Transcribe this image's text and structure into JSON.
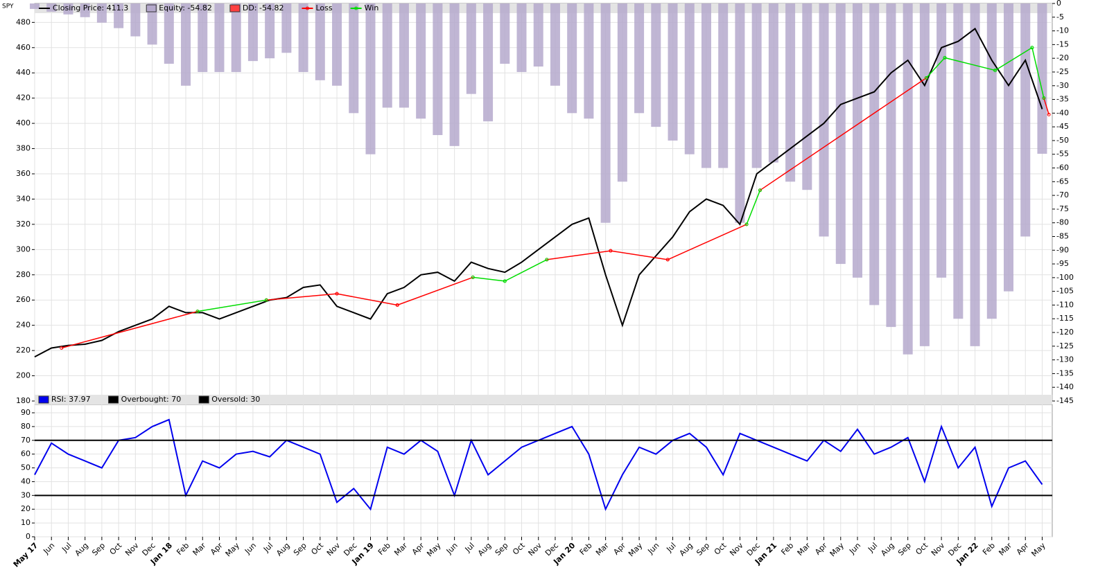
{
  "chart_data": [
    {
      "type": "line",
      "title": "SPY",
      "xlim": [
        0,
        60.6
      ],
      "ylim": [
        180,
        495
      ],
      "yticks": [
        180,
        200,
        220,
        240,
        260,
        280,
        300,
        320,
        340,
        360,
        380,
        400,
        420,
        440,
        460,
        480
      ],
      "y2lim": [
        -145,
        0
      ],
      "y2ticks": [
        0,
        -5,
        -10,
        -15,
        -20,
        -25,
        -30,
        -35,
        -40,
        -45,
        -50,
        -55,
        -60,
        -65,
        -70,
        -75,
        -80,
        -85,
        -90,
        -95,
        -100,
        -105,
        -110,
        -115,
        -120,
        -125,
        -130,
        -135,
        -140,
        -145
      ],
      "grid": true,
      "series": [
        {
          "name": "Closing Price: 411.3",
          "color": "#000000",
          "kind": "line",
          "x": [
            0,
            1,
            2,
            3,
            4,
            5,
            6,
            7,
            8,
            9,
            10,
            11,
            12,
            13,
            14,
            15,
            16,
            17,
            18,
            19,
            20,
            21,
            22,
            23,
            24,
            25,
            26,
            27,
            28,
            29,
            30,
            31,
            32,
            33,
            34,
            35,
            36,
            37,
            38,
            39,
            40,
            41,
            42,
            43,
            44,
            45,
            46,
            47,
            48,
            49,
            50,
            51,
            52,
            53,
            54,
            55,
            56,
            57,
            58,
            59,
            60
          ],
          "values": [
            215,
            222,
            224,
            225,
            228,
            235,
            240,
            245,
            255,
            250,
            250,
            245,
            250,
            255,
            260,
            262,
            270,
            272,
            255,
            250,
            245,
            265,
            270,
            280,
            282,
            275,
            290,
            285,
            282,
            290,
            300,
            310,
            320,
            325,
            280,
            240,
            280,
            295,
            310,
            330,
            340,
            335,
            320,
            360,
            370,
            380,
            390,
            400,
            415,
            420,
            425,
            440,
            450,
            430,
            460,
            465,
            475,
            450,
            430,
            450,
            411.3
          ]
        },
        {
          "name": "Equity: -54.82",
          "color": "#b5a9cc",
          "kind": "bar",
          "axis": "y2",
          "x": [
            0,
            1,
            2,
            3,
            4,
            5,
            6,
            7,
            8,
            9,
            10,
            11,
            12,
            13,
            14,
            15,
            16,
            17,
            18,
            19,
            20,
            21,
            22,
            23,
            24,
            25,
            26,
            27,
            28,
            29,
            30,
            31,
            32,
            33,
            34,
            35,
            36,
            37,
            38,
            39,
            40,
            41,
            42,
            43,
            44,
            45,
            46,
            47,
            48,
            49,
            50,
            51,
            52,
            53,
            54,
            55,
            56,
            57,
            58,
            59,
            60
          ],
          "values": [
            -2,
            -3,
            -4,
            -5,
            -7,
            -9,
            -12,
            -15,
            -22,
            -30,
            -25,
            -25,
            -25,
            -21,
            -20,
            -18,
            -25,
            -28,
            -30,
            -40,
            -55,
            -38,
            -38,
            -42,
            -48,
            -52,
            -33,
            -43,
            -22,
            -25,
            -23,
            -30,
            -40,
            -42,
            -80,
            -65,
            -40,
            -45,
            -50,
            -55,
            -60,
            -60,
            -80,
            -60,
            -58,
            -65,
            -68,
            -85,
            -95,
            -100,
            -110,
            -118,
            -128,
            -125,
            -100,
            -115,
            -125,
            -115,
            -105,
            -85,
            -54.82
          ]
        },
        {
          "name": "DD: -54.82",
          "color": "#ff4040",
          "kind": "bar",
          "axis": "y2",
          "x": [],
          "values": []
        },
        {
          "name": "Loss",
          "color": "#ff0000",
          "kind": "segments",
          "segments": [
            {
              "x": [
                1.6,
                9.7
              ],
              "y": [
                222,
                251
              ]
            },
            {
              "x": [
                13.8,
                18.0
              ],
              "y": [
                260,
                265
              ]
            },
            {
              "x": [
                18.0,
                21.6
              ],
              "y": [
                265,
                256
              ]
            },
            {
              "x": [
                21.6,
                26.1
              ],
              "y": [
                256,
                278
              ]
            },
            {
              "x": [
                30.5,
                34.3
              ],
              "y": [
                292,
                299
              ]
            },
            {
              "x": [
                34.3,
                37.7
              ],
              "y": [
                299,
                292
              ]
            },
            {
              "x": [
                37.7,
                42.4
              ],
              "y": [
                292,
                320
              ]
            },
            {
              "x": [
                43.2,
                53.1
              ],
              "y": [
                347,
                436
              ]
            },
            {
              "x": [
                60.1,
                60.4
              ],
              "y": [
                420,
                407
              ]
            }
          ]
        },
        {
          "name": "Win",
          "color": "#00dd00",
          "kind": "segments",
          "segments": [
            {
              "x": [
                9.7,
                13.8
              ],
              "y": [
                251,
                260
              ]
            },
            {
              "x": [
                26.1,
                28.0
              ],
              "y": [
                278,
                275
              ]
            },
            {
              "x": [
                28.0,
                30.5
              ],
              "y": [
                275,
                292
              ]
            },
            {
              "x": [
                42.4,
                43.2
              ],
              "y": [
                320,
                347
              ]
            },
            {
              "x": [
                53.1,
                54.2
              ],
              "y": [
                436,
                452
              ]
            },
            {
              "x": [
                54.2,
                57.2
              ],
              "y": [
                452,
                442
              ]
            },
            {
              "x": [
                57.2,
                59.4
              ],
              "y": [
                442,
                460
              ]
            },
            {
              "x": [
                59.4,
                60.1
              ],
              "y": [
                460,
                420
              ]
            }
          ]
        }
      ]
    },
    {
      "type": "line",
      "xlim": [
        0,
        60.6
      ],
      "ylim": [
        0,
        90
      ],
      "yticks": [
        0,
        10,
        20,
        30,
        40,
        50,
        60,
        70,
        80,
        90
      ],
      "grid": true,
      "xticks": [
        {
          "value": 0,
          "label": "May 17"
        },
        {
          "value": 1,
          "label": "Jun"
        },
        {
          "value": 2,
          "label": "Jul"
        },
        {
          "value": 3,
          "label": "Aug"
        },
        {
          "value": 4,
          "label": "Sep"
        },
        {
          "value": 5,
          "label": "Oct"
        },
        {
          "value": 6,
          "label": "Nov"
        },
        {
          "value": 7,
          "label": "Dec"
        },
        {
          "value": 8,
          "label": "Jan 18"
        },
        {
          "value": 9,
          "label": "Feb"
        },
        {
          "value": 10,
          "label": "Mar"
        },
        {
          "value": 11,
          "label": "Apr"
        },
        {
          "value": 12,
          "label": "May"
        },
        {
          "value": 13,
          "label": "Jun"
        },
        {
          "value": 14,
          "label": "Jul"
        },
        {
          "value": 15,
          "label": "Aug"
        },
        {
          "value": 16,
          "label": "Sep"
        },
        {
          "value": 17,
          "label": "Oct"
        },
        {
          "value": 18,
          "label": "Nov"
        },
        {
          "value": 19,
          "label": "Dec"
        },
        {
          "value": 20,
          "label": "Jan 19"
        },
        {
          "value": 21,
          "label": "Feb"
        },
        {
          "value": 22,
          "label": "Mar"
        },
        {
          "value": 23,
          "label": "Apr"
        },
        {
          "value": 24,
          "label": "May"
        },
        {
          "value": 25,
          "label": "Jun"
        },
        {
          "value": 26,
          "label": "Jul"
        },
        {
          "value": 27,
          "label": "Aug"
        },
        {
          "value": 28,
          "label": "Sep"
        },
        {
          "value": 29,
          "label": "Oct"
        },
        {
          "value": 30,
          "label": "Nov"
        },
        {
          "value": 31,
          "label": "Dec"
        },
        {
          "value": 32,
          "label": "Jan 20"
        },
        {
          "value": 33,
          "label": "Feb"
        },
        {
          "value": 34,
          "label": "Mar"
        },
        {
          "value": 35,
          "label": "Apr"
        },
        {
          "value": 36,
          "label": "May"
        },
        {
          "value": 37,
          "label": "Jun"
        },
        {
          "value": 38,
          "label": "Jul"
        },
        {
          "value": 39,
          "label": "Aug"
        },
        {
          "value": 40,
          "label": "Sep"
        },
        {
          "value": 41,
          "label": "Oct"
        },
        {
          "value": 42,
          "label": "Nov"
        },
        {
          "value": 43,
          "label": "Dec"
        },
        {
          "value": 44,
          "label": "Jan 21"
        },
        {
          "value": 45,
          "label": "Feb"
        },
        {
          "value": 46,
          "label": "Mar"
        },
        {
          "value": 47,
          "label": "Apr"
        },
        {
          "value": 48,
          "label": "May"
        },
        {
          "value": 49,
          "label": "Jun"
        },
        {
          "value": 50,
          "label": "Jul"
        },
        {
          "value": 51,
          "label": "Aug"
        },
        {
          "value": 52,
          "label": "Sep"
        },
        {
          "value": 53,
          "label": "Oct"
        },
        {
          "value": 54,
          "label": "Nov"
        },
        {
          "value": 55,
          "label": "Dec"
        },
        {
          "value": 56,
          "label": "Jan 22"
        },
        {
          "value": 57,
          "label": "Feb"
        },
        {
          "value": 58,
          "label": "Mar"
        },
        {
          "value": 59,
          "label": "Apr"
        },
        {
          "value": 60,
          "label": "May"
        }
      ],
      "series": [
        {
          "name": "RSI: 37.97",
          "color": "#0000ee",
          "kind": "line",
          "x": [
            0,
            1,
            2,
            3,
            4,
            5,
            6,
            7,
            8,
            9,
            10,
            11,
            12,
            13,
            14,
            15,
            16,
            17,
            18,
            19,
            20,
            21,
            22,
            23,
            24,
            25,
            26,
            27,
            28,
            29,
            30,
            31,
            32,
            33,
            34,
            35,
            36,
            37,
            38,
            39,
            40,
            41,
            42,
            43,
            44,
            45,
            46,
            47,
            48,
            49,
            50,
            51,
            52,
            53,
            54,
            55,
            56,
            57,
            58,
            59,
            60
          ],
          "values": [
            45,
            68,
            60,
            55,
            50,
            70,
            72,
            80,
            85,
            30,
            55,
            50,
            60,
            62,
            58,
            70,
            65,
            60,
            25,
            35,
            20,
            65,
            60,
            70,
            62,
            30,
            70,
            45,
            55,
            65,
            70,
            75,
            80,
            60,
            20,
            45,
            65,
            60,
            70,
            75,
            65,
            45,
            75,
            70,
            65,
            60,
            55,
            70,
            62,
            78,
            60,
            65,
            72,
            40,
            80,
            50,
            65,
            22,
            50,
            55,
            37.97
          ]
        }
      ],
      "levels": [
        {
          "name": "Overbought: 70",
          "value": 70,
          "color": "#000000"
        },
        {
          "name": "Oversold: 30",
          "value": 30,
          "color": "#000000"
        }
      ]
    }
  ]
}
